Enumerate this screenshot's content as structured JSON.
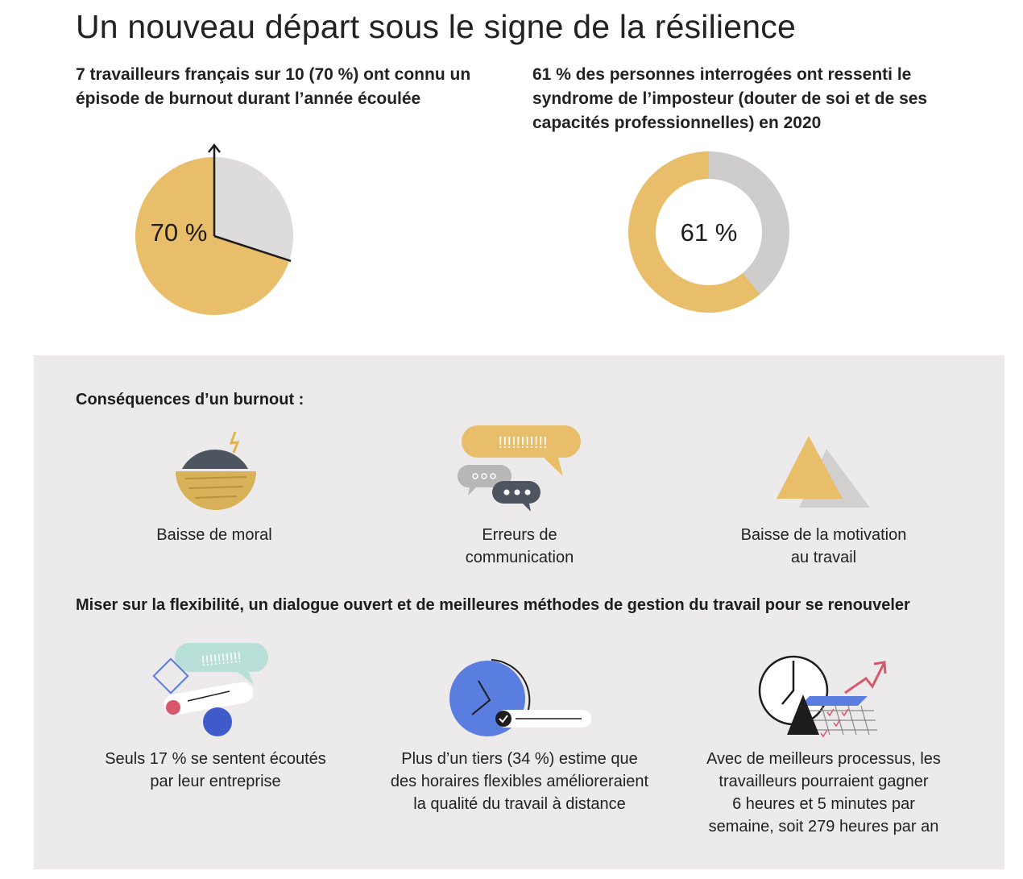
{
  "title": "Un nouveau départ sous le signe de la résilience",
  "stat1": {
    "text": "7 travailleurs français sur 10 (70 %) ont connu un épisode de burnout durant l’année écoulée",
    "label": "70 %"
  },
  "stat2": {
    "text": "61 % des personnes interrogées ont ressenti le syndrome de l’imposteur (douter de soi et de ses capacités professionnelles) en 2020",
    "label": "61 %"
  },
  "chart_data": [
    {
      "type": "pie",
      "labels": [
        "70 %",
        ""
      ],
      "values": [
        70,
        30
      ],
      "colors": [
        "#e8be6a",
        "#d9d7d6"
      ]
    },
    {
      "type": "pie",
      "labels": [
        "61 %",
        ""
      ],
      "values": [
        61,
        39
      ],
      "colors": [
        "#e8be6a",
        "#c9c7c6"
      ],
      "hole": true
    }
  ],
  "consequences": {
    "title": "Conséquences d’un burnout :",
    "items": [
      {
        "label": "Baisse de moral"
      },
      {
        "label": "Erreurs de\ncommunication",
        "line1": "Erreurs de",
        "line2": "communication",
        "bubble": "!!!!!!!!!!!"
      },
      {
        "label": "Baisse de la motivation\nau travail",
        "line1": "Baisse de la motivation",
        "line2": "au travail"
      }
    ]
  },
  "flexibility": {
    "title": "Miser sur la flexibilité, un dialogue ouvert et de meilleures méthodes de gestion du travail pour se renouveler",
    "items": [
      {
        "line1": "Seuls 17 % se sentent écoutés",
        "line2": "par leur entreprise",
        "bubble": "!!!!!!!!!!"
      },
      {
        "line1": "Plus d’un tiers (34 %) estime que",
        "line2": "des horaires flexibles amélioreraient",
        "line3": "la qualité du travail à distance"
      },
      {
        "line1": "Avec de meilleurs processus, les",
        "line2": "travailleurs pourraient gagner",
        "line3": "6 heures et 5 minutes par",
        "line4": "semaine, soit 279 heures par an"
      }
    ]
  },
  "colors": {
    "gold": "#e8be6a",
    "grey": "#d9d7d6",
    "panel": "#eceaea",
    "blue": "#5a7de0",
    "dark": "#4d5560",
    "red": "#d9576a"
  }
}
